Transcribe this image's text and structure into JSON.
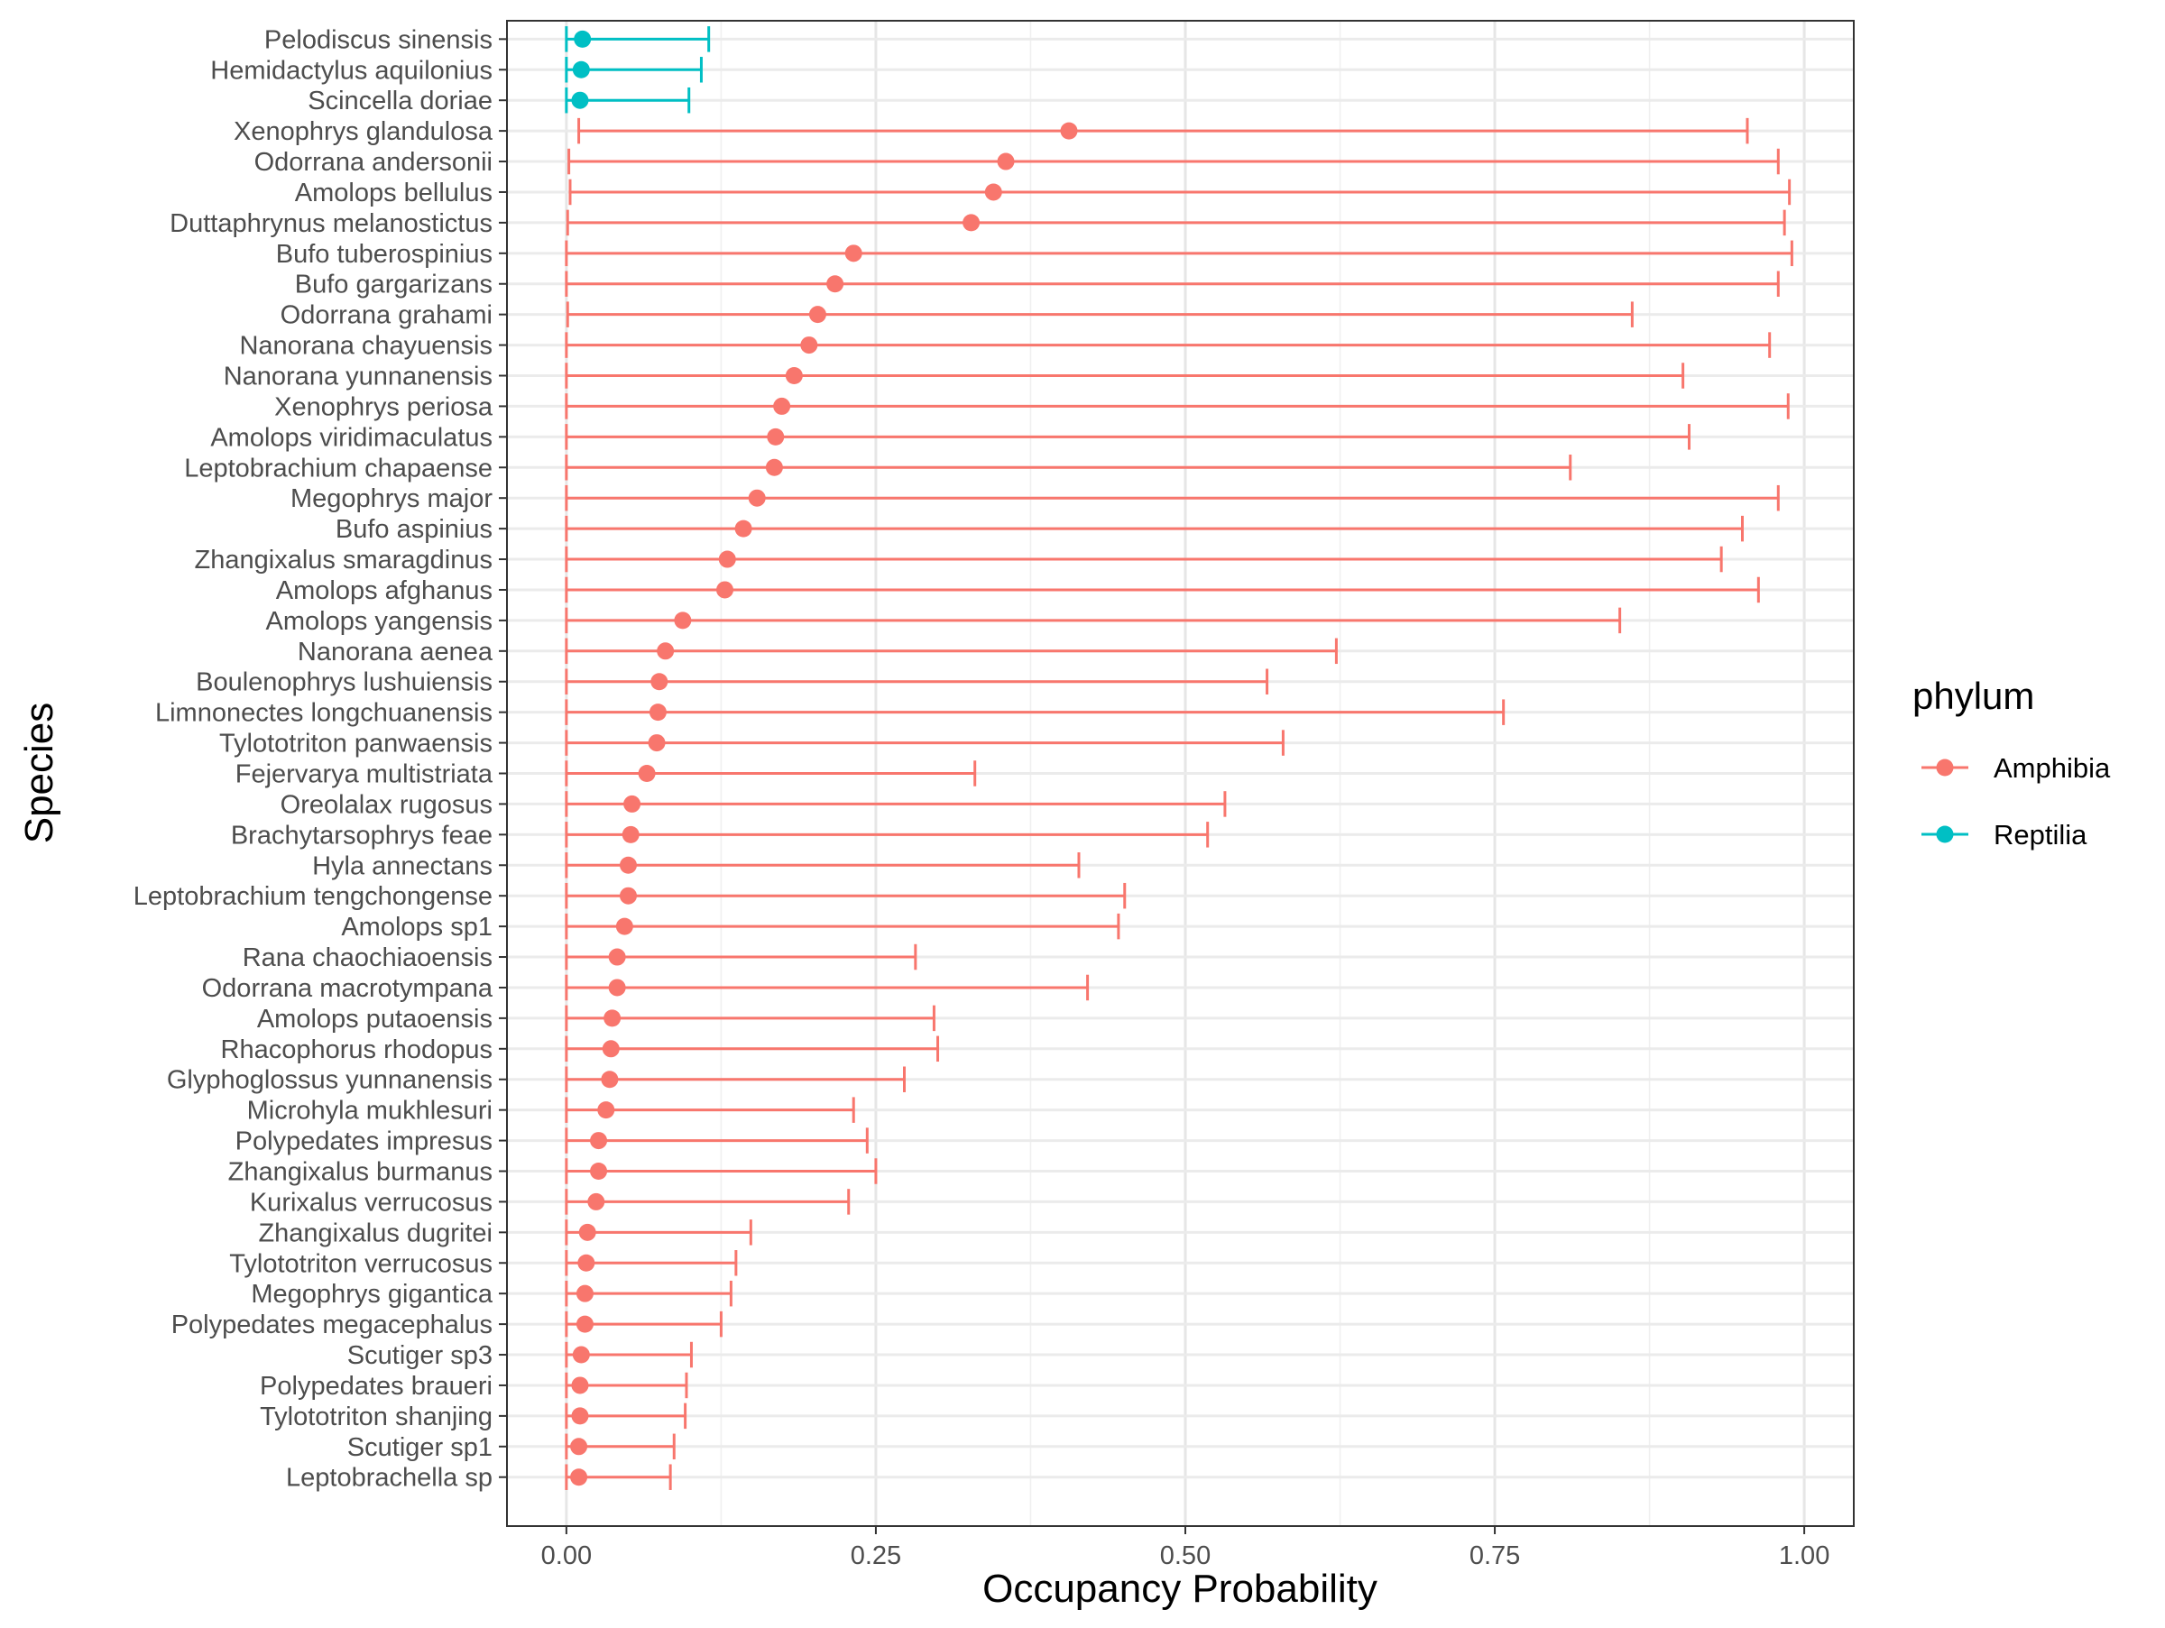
{
  "chart_data": {
    "type": "errorbar",
    "title": "",
    "xlabel": "Occupancy Probability",
    "ylabel": "Species",
    "xlim": [
      -0.048,
      1.04
    ],
    "x_ticks": [
      0.0,
      0.25,
      0.5,
      0.75,
      1.0
    ],
    "x_tick_labels": [
      "0.00",
      "0.25",
      "0.50",
      "0.75",
      "1.00"
    ],
    "grid": true,
    "legend": {
      "title": "phylum",
      "position": "right",
      "entries": [
        {
          "name": "Amphibia",
          "color": "#F8766D"
        },
        {
          "name": "Reptilia",
          "color": "#00BFC4"
        }
      ]
    },
    "series": [
      {
        "name": "Amphibia",
        "color": "#F8766D"
      },
      {
        "name": "Reptilia",
        "color": "#00BFC4"
      }
    ],
    "species": [
      {
        "label": "Pelodiscus sinensis",
        "phylum": "Reptilia",
        "mean": 0.013,
        "lower": 0.0,
        "upper": 0.115
      },
      {
        "label": "Hemidactylus aquilonius",
        "phylum": "Reptilia",
        "mean": 0.012,
        "lower": 0.0,
        "upper": 0.109
      },
      {
        "label": "Scincella doriae",
        "phylum": "Reptilia",
        "mean": 0.011,
        "lower": 0.0,
        "upper": 0.099
      },
      {
        "label": "Xenophrys glandulosa",
        "phylum": "Amphibia",
        "mean": 0.406,
        "lower": 0.01,
        "upper": 0.954
      },
      {
        "label": "Odorrana andersonii",
        "phylum": "Amphibia",
        "mean": 0.355,
        "lower": 0.002,
        "upper": 0.979
      },
      {
        "label": "Amolops bellulus",
        "phylum": "Amphibia",
        "mean": 0.345,
        "lower": 0.003,
        "upper": 0.988
      },
      {
        "label": "Duttaphrynus melanostictus",
        "phylum": "Amphibia",
        "mean": 0.327,
        "lower": 0.001,
        "upper": 0.984
      },
      {
        "label": "Bufo tuberospinius",
        "phylum": "Amphibia",
        "mean": 0.232,
        "lower": 0.0,
        "upper": 0.99
      },
      {
        "label": "Bufo gargarizans",
        "phylum": "Amphibia",
        "mean": 0.217,
        "lower": 0.0,
        "upper": 0.979
      },
      {
        "label": "Odorrana grahami",
        "phylum": "Amphibia",
        "mean": 0.203,
        "lower": 0.001,
        "upper": 0.861
      },
      {
        "label": "Nanorana chayuensis",
        "phylum": "Amphibia",
        "mean": 0.196,
        "lower": 0.0,
        "upper": 0.972
      },
      {
        "label": "Nanorana yunnanensis",
        "phylum": "Amphibia",
        "mean": 0.184,
        "lower": 0.0,
        "upper": 0.902
      },
      {
        "label": "Xenophrys periosa",
        "phylum": "Amphibia",
        "mean": 0.174,
        "lower": 0.0,
        "upper": 0.987
      },
      {
        "label": "Amolops viridimaculatus",
        "phylum": "Amphibia",
        "mean": 0.169,
        "lower": 0.0,
        "upper": 0.907
      },
      {
        "label": "Leptobrachium chapaense",
        "phylum": "Amphibia",
        "mean": 0.168,
        "lower": 0.0,
        "upper": 0.811
      },
      {
        "label": "Megophrys major",
        "phylum": "Amphibia",
        "mean": 0.154,
        "lower": 0.0,
        "upper": 0.979
      },
      {
        "label": "Bufo aspinius",
        "phylum": "Amphibia",
        "mean": 0.143,
        "lower": 0.0,
        "upper": 0.95
      },
      {
        "label": "Zhangixalus smaragdinus",
        "phylum": "Amphibia",
        "mean": 0.13,
        "lower": 0.0,
        "upper": 0.933
      },
      {
        "label": "Amolops afghanus",
        "phylum": "Amphibia",
        "mean": 0.128,
        "lower": 0.0,
        "upper": 0.963
      },
      {
        "label": "Amolops yangensis",
        "phylum": "Amphibia",
        "mean": 0.094,
        "lower": 0.0,
        "upper": 0.851
      },
      {
        "label": "Nanorana aenea",
        "phylum": "Amphibia",
        "mean": 0.08,
        "lower": 0.0,
        "upper": 0.622
      },
      {
        "label": "Boulenophrys lushuiensis",
        "phylum": "Amphibia",
        "mean": 0.075,
        "lower": 0.0,
        "upper": 0.566
      },
      {
        "label": "Limnonectes longchuanensis",
        "phylum": "Amphibia",
        "mean": 0.074,
        "lower": 0.0,
        "upper": 0.757
      },
      {
        "label": "Tylototriton panwaensis",
        "phylum": "Amphibia",
        "mean": 0.073,
        "lower": 0.0,
        "upper": 0.579
      },
      {
        "label": "Fejervarya multistriata",
        "phylum": "Amphibia",
        "mean": 0.065,
        "lower": 0.0,
        "upper": 0.33
      },
      {
        "label": "Oreolalax rugosus",
        "phylum": "Amphibia",
        "mean": 0.053,
        "lower": 0.0,
        "upper": 0.532
      },
      {
        "label": "Brachytarsophrys feae",
        "phylum": "Amphibia",
        "mean": 0.052,
        "lower": 0.0,
        "upper": 0.518
      },
      {
        "label": "Hyla annectans",
        "phylum": "Amphibia",
        "mean": 0.05,
        "lower": 0.0,
        "upper": 0.414
      },
      {
        "label": "Leptobrachium tengchongense",
        "phylum": "Amphibia",
        "mean": 0.05,
        "lower": 0.0,
        "upper": 0.451
      },
      {
        "label": "Amolops sp1",
        "phylum": "Amphibia",
        "mean": 0.047,
        "lower": 0.0,
        "upper": 0.446
      },
      {
        "label": "Rana chaochiaoensis",
        "phylum": "Amphibia",
        "mean": 0.041,
        "lower": 0.0,
        "upper": 0.282
      },
      {
        "label": "Odorrana macrotympana",
        "phylum": "Amphibia",
        "mean": 0.041,
        "lower": 0.0,
        "upper": 0.421
      },
      {
        "label": "Amolops putaoensis",
        "phylum": "Amphibia",
        "mean": 0.037,
        "lower": 0.0,
        "upper": 0.297
      },
      {
        "label": "Rhacophorus rhodopus",
        "phylum": "Amphibia",
        "mean": 0.036,
        "lower": 0.0,
        "upper": 0.3
      },
      {
        "label": "Glyphoglossus yunnanensis",
        "phylum": "Amphibia",
        "mean": 0.035,
        "lower": 0.0,
        "upper": 0.273
      },
      {
        "label": "Microhyla mukhlesuri",
        "phylum": "Amphibia",
        "mean": 0.032,
        "lower": 0.0,
        "upper": 0.232
      },
      {
        "label": "Polypedates impresus",
        "phylum": "Amphibia",
        "mean": 0.026,
        "lower": 0.0,
        "upper": 0.243
      },
      {
        "label": "Zhangixalus burmanus",
        "phylum": "Amphibia",
        "mean": 0.026,
        "lower": 0.0,
        "upper": 0.25
      },
      {
        "label": "Kurixalus verrucosus",
        "phylum": "Amphibia",
        "mean": 0.024,
        "lower": 0.0,
        "upper": 0.228
      },
      {
        "label": "Zhangixalus dugritei",
        "phylum": "Amphibia",
        "mean": 0.017,
        "lower": 0.0,
        "upper": 0.149
      },
      {
        "label": "Tylototriton verrucosus",
        "phylum": "Amphibia",
        "mean": 0.016,
        "lower": 0.0,
        "upper": 0.137
      },
      {
        "label": "Megophrys gigantica",
        "phylum": "Amphibia",
        "mean": 0.015,
        "lower": 0.0,
        "upper": 0.133
      },
      {
        "label": "Polypedates megacephalus",
        "phylum": "Amphibia",
        "mean": 0.015,
        "lower": 0.0,
        "upper": 0.125
      },
      {
        "label": "Scutiger sp3",
        "phylum": "Amphibia",
        "mean": 0.012,
        "lower": 0.0,
        "upper": 0.101
      },
      {
        "label": "Polypedates braueri",
        "phylum": "Amphibia",
        "mean": 0.011,
        "lower": 0.0,
        "upper": 0.097
      },
      {
        "label": "Tylototriton shanjing",
        "phylum": "Amphibia",
        "mean": 0.011,
        "lower": 0.0,
        "upper": 0.096
      },
      {
        "label": "Scutiger sp1",
        "phylum": "Amphibia",
        "mean": 0.01,
        "lower": 0.0,
        "upper": 0.087
      },
      {
        "label": "Leptobrachella sp",
        "phylum": "Amphibia",
        "mean": 0.01,
        "lower": 0.0,
        "upper": 0.084
      }
    ]
  }
}
